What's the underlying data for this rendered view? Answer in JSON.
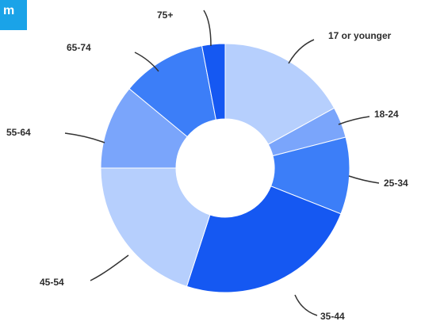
{
  "corner_badge": {
    "text": "m"
  },
  "chart_data": {
    "type": "pie",
    "donut": true,
    "categories": [
      "17 or younger",
      "18-24",
      "25-34",
      "35-44",
      "45-54",
      "55-64",
      "65-74",
      "75+"
    ],
    "values": [
      17,
      4,
      10,
      24,
      20,
      11,
      11,
      3
    ],
    "colors": [
      "#b6cffd",
      "#7aa5fb",
      "#3c7ef8",
      "#1558f2",
      "#b6cffd",
      "#7aa5fb",
      "#3c7ef8",
      "#1558f2"
    ],
    "title": "",
    "legend": "none",
    "label_position": "outside with leader lines"
  }
}
